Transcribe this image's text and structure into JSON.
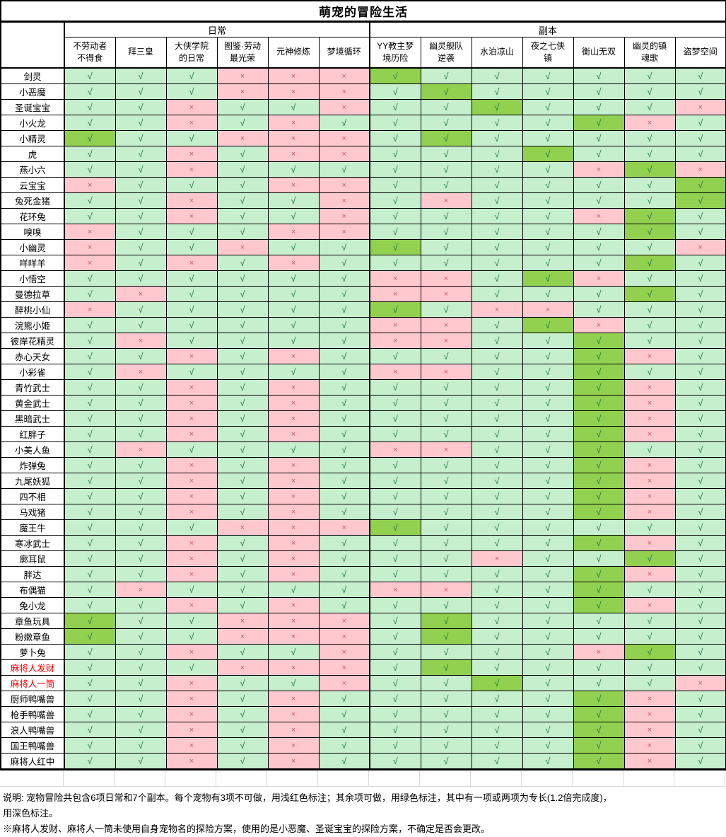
{
  "title": "萌宠的冒险生活",
  "groups": [
    {
      "label": "日常",
      "span": 6
    },
    {
      "label": "副本",
      "span": 7
    }
  ],
  "columns": [
    "不劳动者\n不得食",
    "拜三皇",
    "大侠学院\n的日常",
    "图鉴·劳动\n最光荣",
    "元神修炼",
    "梦境循环",
    "YY教主梦\n境历险",
    "幽灵舰队\n逆袭",
    "水泊凉山",
    "夜之七侠\n镇",
    "衡山无双",
    "幽灵的镇\n魂歌",
    "盗梦空间"
  ],
  "marks": {
    "check": "√",
    "cross": "×"
  },
  "cell_legend": {
    "L": "可做(浅绿√)",
    "D": "专长(深绿√)",
    "P": "不可做(浅红×)"
  },
  "colors": {
    "can_bg": "#C6EFCE",
    "specialty_bg": "#92D050",
    "cannot_bg": "#FFC7CE",
    "check": "#217346",
    "cross": "#C75B66",
    "name_red": "#FF0000"
  },
  "rows": [
    {
      "name": "剑灵",
      "red": false,
      "cells": [
        "L",
        "L",
        "L",
        "P",
        "P",
        "P",
        "D",
        "L",
        "L",
        "L",
        "L",
        "L",
        "L"
      ]
    },
    {
      "name": "小恶魔",
      "red": false,
      "cells": [
        "L",
        "L",
        "L",
        "P",
        "P",
        "P",
        "L",
        "D",
        "L",
        "L",
        "L",
        "L",
        "L"
      ]
    },
    {
      "name": "圣诞宝宝",
      "red": false,
      "cells": [
        "L",
        "L",
        "P",
        "L",
        "L",
        "P",
        "L",
        "L",
        "D",
        "L",
        "L",
        "L",
        "P"
      ]
    },
    {
      "name": "小火龙",
      "red": false,
      "cells": [
        "L",
        "L",
        "P",
        "L",
        "P",
        "L",
        "L",
        "L",
        "L",
        "L",
        "D",
        "P",
        "L"
      ]
    },
    {
      "name": "小精灵",
      "red": false,
      "cells": [
        "D",
        "L",
        "L",
        "P",
        "P",
        "P",
        "L",
        "D",
        "L",
        "L",
        "L",
        "L",
        "L"
      ]
    },
    {
      "name": "虎",
      "red": false,
      "cells": [
        "L",
        "L",
        "P",
        "L",
        "P",
        "P",
        "L",
        "L",
        "L",
        "D",
        "L",
        "L",
        "L"
      ]
    },
    {
      "name": "燕小六",
      "red": false,
      "cells": [
        "L",
        "L",
        "P",
        "L",
        "L",
        "L",
        "L",
        "L",
        "L",
        "L",
        "P",
        "D",
        "P"
      ]
    },
    {
      "name": "云宝宝",
      "red": false,
      "cells": [
        "P",
        "L",
        "L",
        "L",
        "P",
        "P",
        "L",
        "L",
        "L",
        "L",
        "L",
        "L",
        "D"
      ]
    },
    {
      "name": "兔死金猪",
      "red": false,
      "cells": [
        "L",
        "L",
        "P",
        "L",
        "L",
        "P",
        "L",
        "P",
        "L",
        "L",
        "L",
        "L",
        "D"
      ]
    },
    {
      "name": "花环兔",
      "red": false,
      "cells": [
        "L",
        "L",
        "P",
        "L",
        "L",
        "P",
        "L",
        "L",
        "L",
        "L",
        "P",
        "D",
        "L"
      ]
    },
    {
      "name": "嗅嗅",
      "red": false,
      "cells": [
        "P",
        "L",
        "L",
        "L",
        "P",
        "P",
        "L",
        "L",
        "L",
        "L",
        "L",
        "D",
        "L"
      ]
    },
    {
      "name": "小幽灵",
      "red": false,
      "cells": [
        "P",
        "L",
        "L",
        "P",
        "L",
        "L",
        "D",
        "L",
        "L",
        "L",
        "L",
        "L",
        "P"
      ]
    },
    {
      "name": "咩咩羊",
      "red": false,
      "cells": [
        "P",
        "L",
        "P",
        "L",
        "P",
        "L",
        "L",
        "L",
        "L",
        "L",
        "L",
        "D",
        "L"
      ]
    },
    {
      "name": "小悟空",
      "red": false,
      "cells": [
        "L",
        "L",
        "L",
        "L",
        "L",
        "L",
        "P",
        "P",
        "L",
        "D",
        "P",
        "L",
        "L"
      ]
    },
    {
      "name": "曼德拉草",
      "red": false,
      "cells": [
        "L",
        "P",
        "L",
        "L",
        "L",
        "L",
        "P",
        "P",
        "L",
        "L",
        "L",
        "D",
        "L"
      ]
    },
    {
      "name": "醉桃小仙",
      "red": false,
      "cells": [
        "P",
        "L",
        "L",
        "L",
        "L",
        "L",
        "D",
        "L",
        "P",
        "P",
        "L",
        "L",
        "L"
      ]
    },
    {
      "name": "浣熊小姬",
      "red": false,
      "cells": [
        "L",
        "L",
        "L",
        "L",
        "L",
        "L",
        "P",
        "P",
        "L",
        "D",
        "P",
        "L",
        "L"
      ]
    },
    {
      "name": "彼岸花精灵",
      "red": false,
      "cells": [
        "L",
        "P",
        "L",
        "L",
        "L",
        "L",
        "P",
        "P",
        "L",
        "L",
        "D",
        "L",
        "L"
      ]
    },
    {
      "name": "赤心天女",
      "red": false,
      "cells": [
        "L",
        "L",
        "P",
        "L",
        "P",
        "L",
        "L",
        "L",
        "L",
        "L",
        "D",
        "P",
        "L"
      ]
    },
    {
      "name": "小彩雀",
      "red": false,
      "cells": [
        "L",
        "P",
        "L",
        "L",
        "L",
        "L",
        "P",
        "P",
        "L",
        "L",
        "D",
        "L",
        "L"
      ]
    },
    {
      "name": "青竹武士",
      "red": false,
      "cells": [
        "L",
        "L",
        "P",
        "L",
        "P",
        "L",
        "L",
        "L",
        "L",
        "L",
        "D",
        "P",
        "L"
      ]
    },
    {
      "name": "黄金武士",
      "red": false,
      "cells": [
        "L",
        "L",
        "P",
        "L",
        "P",
        "L",
        "L",
        "L",
        "L",
        "L",
        "D",
        "P",
        "L"
      ]
    },
    {
      "name": "黑暗武士",
      "red": false,
      "cells": [
        "L",
        "L",
        "P",
        "L",
        "P",
        "L",
        "L",
        "L",
        "L",
        "L",
        "D",
        "P",
        "L"
      ]
    },
    {
      "name": "红胖子",
      "red": false,
      "cells": [
        "L",
        "L",
        "P",
        "L",
        "P",
        "L",
        "L",
        "L",
        "L",
        "L",
        "D",
        "P",
        "L"
      ]
    },
    {
      "name": "小美人鱼",
      "red": false,
      "cells": [
        "L",
        "P",
        "L",
        "L",
        "L",
        "L",
        "P",
        "P",
        "L",
        "L",
        "D",
        "L",
        "L"
      ]
    },
    {
      "name": "炸弹兔",
      "red": false,
      "cells": [
        "L",
        "L",
        "P",
        "L",
        "P",
        "L",
        "L",
        "L",
        "L",
        "L",
        "D",
        "P",
        "L"
      ]
    },
    {
      "name": "九尾妖狐",
      "red": false,
      "cells": [
        "L",
        "L",
        "P",
        "L",
        "P",
        "L",
        "L",
        "L",
        "L",
        "L",
        "D",
        "P",
        "L"
      ]
    },
    {
      "name": "四不相",
      "red": false,
      "cells": [
        "L",
        "L",
        "P",
        "L",
        "P",
        "L",
        "L",
        "L",
        "L",
        "L",
        "D",
        "P",
        "L"
      ]
    },
    {
      "name": "马戏猪",
      "red": false,
      "cells": [
        "L",
        "L",
        "P",
        "L",
        "P",
        "L",
        "L",
        "L",
        "L",
        "L",
        "D",
        "P",
        "L"
      ]
    },
    {
      "name": "魔王牛",
      "red": false,
      "cells": [
        "L",
        "L",
        "L",
        "P",
        "P",
        "P",
        "D",
        "L",
        "L",
        "L",
        "L",
        "L",
        "L"
      ]
    },
    {
      "name": "寒冰武士",
      "red": false,
      "cells": [
        "L",
        "L",
        "P",
        "L",
        "P",
        "L",
        "L",
        "L",
        "L",
        "L",
        "D",
        "P",
        "L"
      ]
    },
    {
      "name": "廓耳鼠",
      "red": false,
      "cells": [
        "L",
        "L",
        "P",
        "L",
        "P",
        "L",
        "L",
        "L",
        "P",
        "L",
        "L",
        "D",
        "L"
      ]
    },
    {
      "name": "胖达",
      "red": false,
      "cells": [
        "L",
        "L",
        "P",
        "L",
        "P",
        "L",
        "L",
        "L",
        "L",
        "L",
        "D",
        "P",
        "L"
      ]
    },
    {
      "name": "布偶猫",
      "red": false,
      "cells": [
        "L",
        "P",
        "L",
        "L",
        "L",
        "L",
        "P",
        "P",
        "L",
        "L",
        "D",
        "L",
        "L"
      ]
    },
    {
      "name": "兔小龙",
      "red": false,
      "cells": [
        "L",
        "L",
        "P",
        "L",
        "P",
        "L",
        "L",
        "L",
        "L",
        "L",
        "D",
        "P",
        "L"
      ]
    },
    {
      "name": "章鱼玩具",
      "red": false,
      "cells": [
        "D",
        "L",
        "L",
        "P",
        "P",
        "P",
        "L",
        "D",
        "L",
        "L",
        "L",
        "L",
        "L"
      ]
    },
    {
      "name": "粉嫩章鱼",
      "red": false,
      "cells": [
        "D",
        "L",
        "L",
        "P",
        "P",
        "P",
        "L",
        "D",
        "L",
        "L",
        "L",
        "L",
        "L"
      ]
    },
    {
      "name": "萝卜兔",
      "red": false,
      "cells": [
        "L",
        "L",
        "P",
        "L",
        "L",
        "P",
        "L",
        "L",
        "L",
        "L",
        "P",
        "D",
        "L"
      ]
    },
    {
      "name": "麻将人发财",
      "red": true,
      "cells": [
        "L",
        "L",
        "L",
        "P",
        "P",
        "P",
        "L",
        "D",
        "L",
        "L",
        "L",
        "L",
        "L"
      ]
    },
    {
      "name": "麻将人一筒",
      "red": true,
      "cells": [
        "L",
        "L",
        "P",
        "L",
        "L",
        "P",
        "L",
        "L",
        "D",
        "L",
        "L",
        "L",
        "P"
      ]
    },
    {
      "name": "厨师鸭嘴兽",
      "red": false,
      "cells": [
        "L",
        "L",
        "P",
        "L",
        "P",
        "L",
        "L",
        "L",
        "L",
        "L",
        "D",
        "P",
        "L"
      ]
    },
    {
      "name": "枪手鸭嘴兽",
      "red": false,
      "cells": [
        "L",
        "L",
        "P",
        "L",
        "P",
        "L",
        "L",
        "L",
        "L",
        "L",
        "D",
        "P",
        "L"
      ]
    },
    {
      "name": "浪人鸭嘴兽",
      "red": false,
      "cells": [
        "L",
        "L",
        "P",
        "L",
        "P",
        "L",
        "L",
        "L",
        "L",
        "L",
        "D",
        "P",
        "L"
      ]
    },
    {
      "name": "国王鸭嘴兽",
      "red": false,
      "cells": [
        "L",
        "L",
        "P",
        "L",
        "P",
        "L",
        "L",
        "L",
        "L",
        "L",
        "D",
        "P",
        "L"
      ]
    },
    {
      "name": "麻将人红中",
      "red": false,
      "cells": [
        "L",
        "L",
        "P",
        "L",
        "P",
        "L",
        "L",
        "L",
        "L",
        "L",
        "D",
        "P",
        "L"
      ]
    }
  ],
  "notes": {
    "legend": "说明: 宠物冒险共包含6项日常和7个副本。每个宠物有3项不可做，用浅红色标注；其余项可做，用绿色标注，其中有一项或两项为专长(1.2倍完成度)，\n用深色标注。",
    "mahjong": "※麻将人发财、麻将人一筒未使用自身宠物名的探险方案，使用的是小恶魔、圣诞宝宝的探险方案，不确定是否会更改。"
  }
}
